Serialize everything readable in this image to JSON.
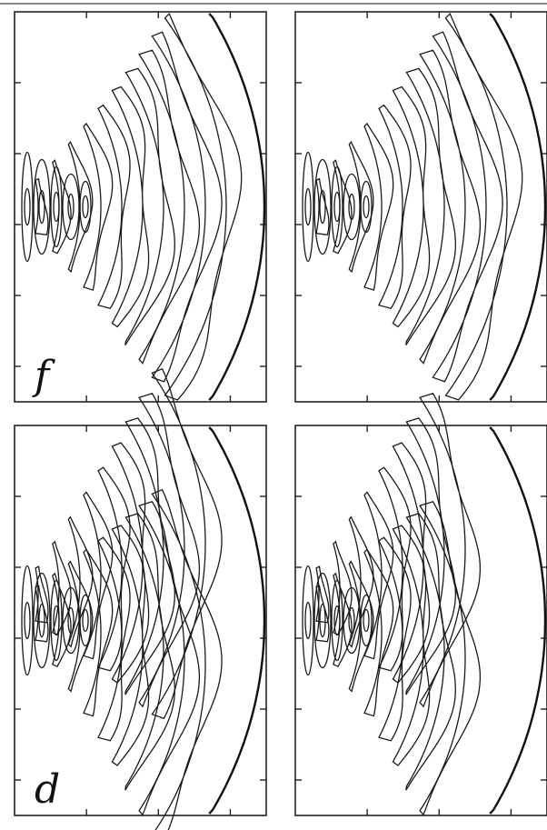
{
  "figure": {
    "panels": [
      {
        "id": "top-left",
        "label": "f",
        "rings": 10,
        "broken": false
      },
      {
        "id": "top-right",
        "label": "",
        "rings": 10,
        "broken": false
      },
      {
        "id": "bottom-left",
        "label": "d",
        "rings": 9,
        "broken": true
      },
      {
        "id": "bottom-right",
        "label": "",
        "rings": 8,
        "broken": true
      }
    ],
    "colors": {
      "ink": "#1a1a1a",
      "frame": "#222222",
      "background": "#ffffff"
    }
  }
}
